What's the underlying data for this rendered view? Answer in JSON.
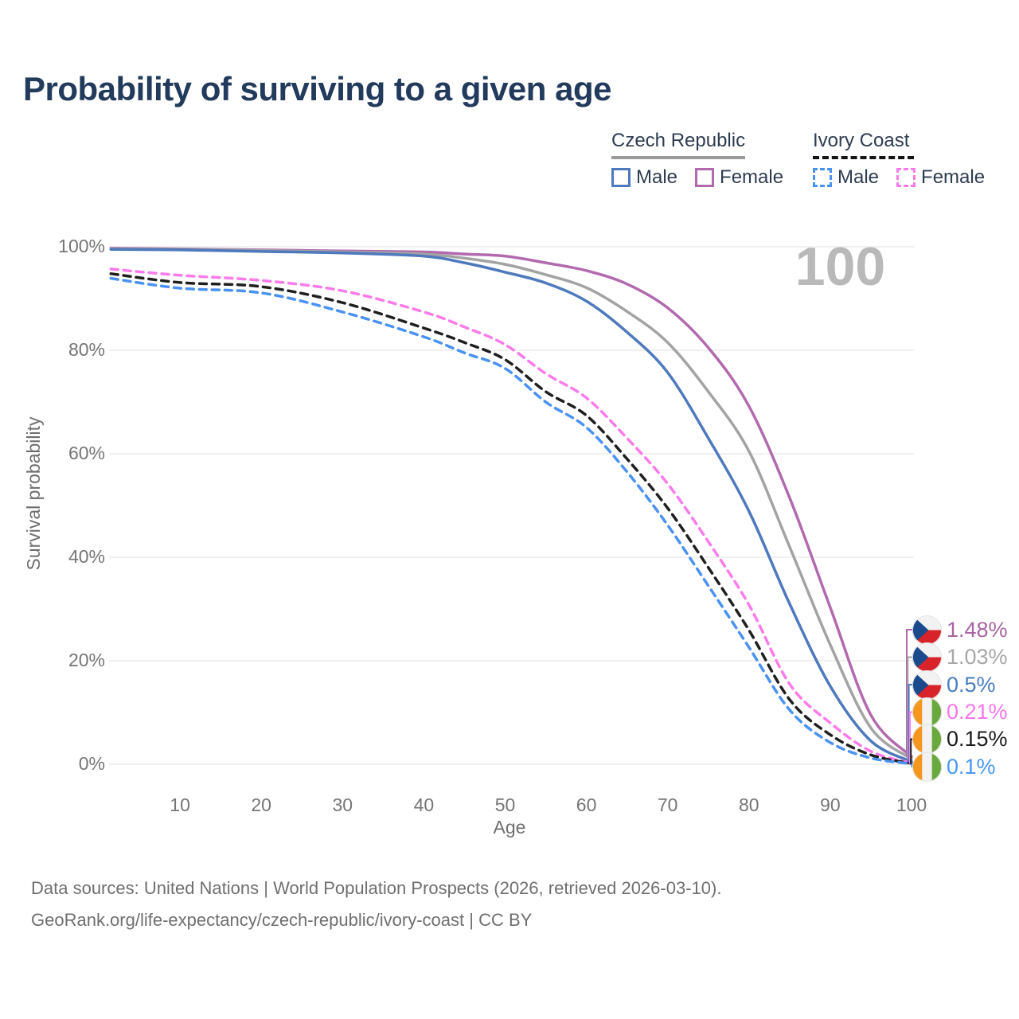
{
  "title": "Probability of surviving to a given age",
  "watermark": "100",
  "legend": {
    "groups": [
      {
        "label": "Czech Republic",
        "line_style": "solid",
        "underline_color": "#9b9b9b",
        "items": [
          {
            "label": "Male",
            "color": "#4e79bd"
          },
          {
            "label": "Female",
            "color": "#b269ae"
          }
        ]
      },
      {
        "label": "Ivory Coast",
        "line_style": "dashed",
        "underline_color": "#141414",
        "items": [
          {
            "label": "Male",
            "color": "#4a92f2"
          },
          {
            "label": "Female",
            "color": "#fb7bea"
          }
        ]
      }
    ]
  },
  "axes": {
    "y_title": "Survival probability",
    "x_title": "Age",
    "y_ticks": [
      {
        "value": 100,
        "label": "100%"
      },
      {
        "value": 80,
        "label": "80%"
      },
      {
        "value": 60,
        "label": "60%"
      },
      {
        "value": 40,
        "label": "40%"
      },
      {
        "value": 20,
        "label": "20%"
      },
      {
        "value": 0,
        "label": "0%"
      }
    ],
    "x_ticks": [
      10,
      20,
      30,
      40,
      50,
      60,
      70,
      80,
      90,
      100
    ]
  },
  "chart_data": {
    "type": "line",
    "title": "Probability of surviving to a given age",
    "xlabel": "Age",
    "ylabel": "Survival probability",
    "xlim": [
      0,
      100
    ],
    "ylim": [
      0,
      100
    ],
    "grid": "horizontal",
    "legend_position": "top-right",
    "x": [
      1.5,
      10,
      20,
      30,
      40,
      45,
      50,
      55,
      60,
      65,
      70,
      75,
      80,
      85,
      90,
      95,
      100
    ],
    "series": [
      {
        "name": "Czech Republic - Female",
        "country": "Czech Republic",
        "sex": "Female",
        "color": "#b269ae",
        "label_color": "#a763a2",
        "line": "solid",
        "flag": "cz",
        "end_label": "1.48%",
        "values": [
          99.7,
          99.6,
          99.4,
          99.2,
          99.0,
          98.6,
          98.2,
          96.9,
          95.4,
          92.8,
          88.2,
          80.5,
          69.2,
          51.5,
          30.3,
          9.5,
          1.48
        ]
      },
      {
        "name": "Czech Republic - Both sexes",
        "country": "Czech Republic",
        "sex": "Both",
        "color": "#a3a3a3",
        "label_color": "#a7a7a7",
        "line": "solid",
        "flag": "cz",
        "end_label": "1.03%",
        "values": [
          99.6,
          99.5,
          99.3,
          99.0,
          98.6,
          97.8,
          96.6,
          94.6,
          92.1,
          87.5,
          81.5,
          72.0,
          60.5,
          42.0,
          23.1,
          7.0,
          1.03
        ]
      },
      {
        "name": "Czech Republic - Male",
        "country": "Czech Republic",
        "sex": "Male",
        "color": "#4e79bd",
        "label_color": "#4a7cc0",
        "line": "solid",
        "flag": "cz",
        "end_label": "0.5%",
        "values": [
          99.5,
          99.4,
          99.1,
          98.8,
          98.2,
          96.9,
          95.1,
          93.0,
          89.5,
          83.5,
          75.7,
          63.0,
          48.9,
          31.0,
          15.1,
          4.5,
          0.5
        ]
      },
      {
        "name": "Ivory Coast - Female",
        "country": "Ivory Coast",
        "sex": "Female",
        "color": "#fb7bea",
        "label_color": "#fb74ef",
        "line": "dashed",
        "flag": "ci",
        "end_label": "0.21%",
        "values": [
          95.7,
          94.5,
          93.5,
          91.5,
          87.4,
          84.5,
          81.1,
          75.5,
          70.8,
          63.0,
          54.2,
          43.0,
          30.8,
          15.5,
          8.0,
          2.5,
          0.21
        ]
      },
      {
        "name": "Ivory Coast - Both sexes",
        "country": "Ivory Coast",
        "sex": "Both",
        "color": "#1f1f1f",
        "label_color": "#1c1c1c",
        "line": "dashed",
        "flag": "ci",
        "end_label": "0.15%",
        "values": [
          94.8,
          93.1,
          92.3,
          89.2,
          84.3,
          81.5,
          78.2,
          72.0,
          67.4,
          59.0,
          49.5,
          38.0,
          25.9,
          12.5,
          5.7,
          1.8,
          0.15
        ]
      },
      {
        "name": "Ivory Coast - Male",
        "country": "Ivory Coast",
        "sex": "Male",
        "color": "#4a92f2",
        "label_color": "#4896f5",
        "line": "dashed",
        "flag": "ci",
        "end_label": "0.1%",
        "values": [
          93.9,
          92.0,
          91.1,
          87.4,
          82.6,
          79.5,
          76.5,
          70.0,
          65.1,
          56.5,
          46.2,
          34.5,
          22.6,
          10.5,
          4.2,
          1.2,
          0.1
        ]
      }
    ],
    "flag_colors": {
      "cz": {
        "white": "#f2f2f2",
        "red": "#d8232a",
        "blue": "#1b4a8c"
      },
      "ci": {
        "orange": "#f5961e",
        "white": "#f2f2f2",
        "green": "#69a83c"
      }
    }
  },
  "source": {
    "line1": "Data sources: United Nations | World Population Prospects (2026, retrieved 2026-03-10).",
    "line2": "GeoRank.org/life-expectancy/czech-republic/ivory-coast | CC BY"
  }
}
